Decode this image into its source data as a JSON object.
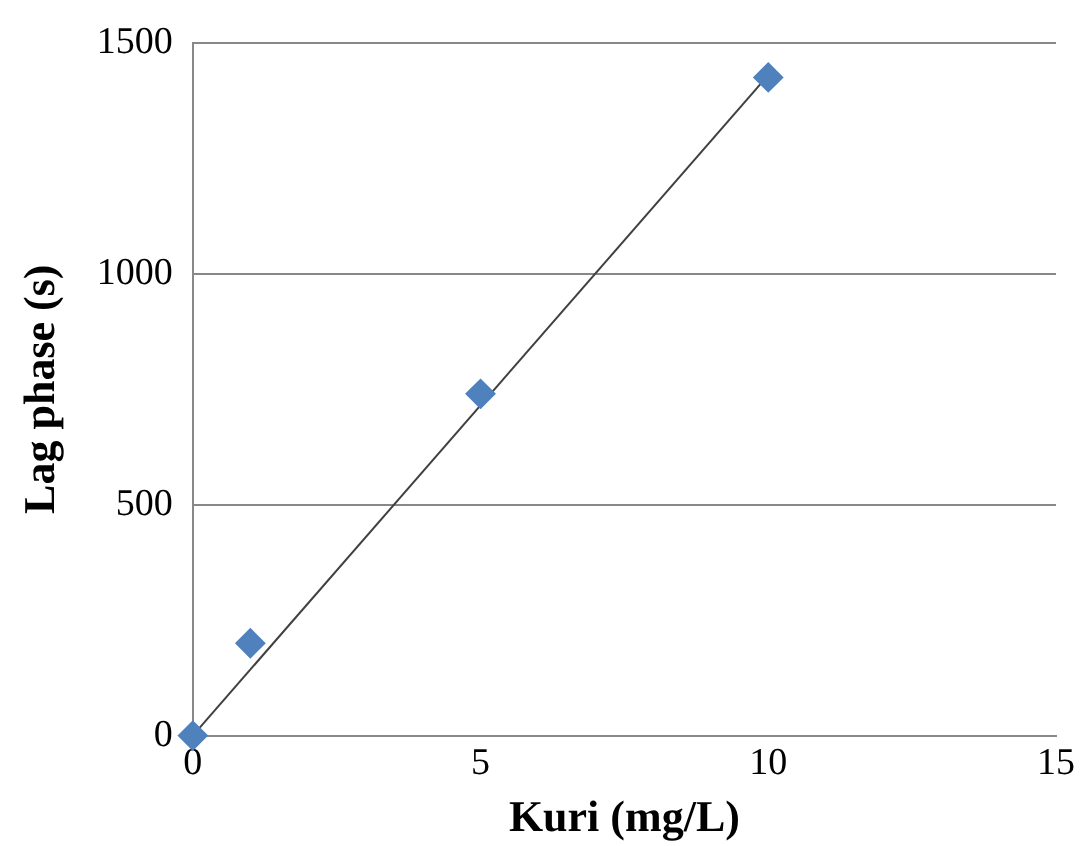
{
  "chart_data": {
    "type": "scatter",
    "xlabel": "Kuri (mg/L)",
    "ylabel": "Lag phase (s)",
    "x": [
      0,
      1,
      5,
      10
    ],
    "series": [
      {
        "color": "#4f81bd",
        "marker": "diamond",
        "values": [
          0,
          200,
          740,
          1425
        ]
      },
      {
        "type": "line",
        "color": "#404040",
        "marker": "none",
        "x": [
          0,
          10
        ],
        "values": [
          0,
          1430
        ]
      }
    ],
    "xlim": [
      0,
      15
    ],
    "xticks": [
      0,
      5,
      10,
      15
    ],
    "ylim": [
      0,
      1500
    ],
    "yticks": [
      0,
      500,
      1000,
      1500
    ],
    "grid": "y",
    "legend": false
  }
}
